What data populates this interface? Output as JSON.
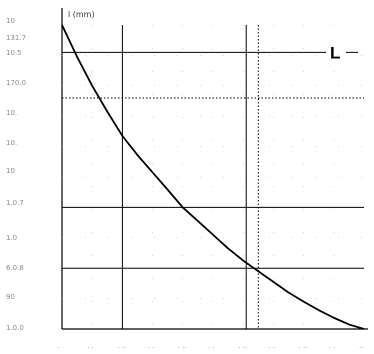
{
  "chart_data": {
    "type": "line",
    "title": "",
    "ylabel": "l (mm)",
    "xlabel": "",
    "xlim": [
      0,
      10
    ],
    "ylim": [
      0,
      10
    ],
    "y_ticks": [
      {
        "value": 0,
        "label": "1.0.0"
      },
      {
        "value": 1,
        "label": "90"
      },
      {
        "value": 2,
        "label": "6.0.8"
      },
      {
        "value": 3,
        "label": "1.0"
      },
      {
        "value": 4,
        "label": "1.0.7"
      },
      {
        "value": 5,
        "label": "10"
      },
      {
        "value": 6,
        "label": "10."
      },
      {
        "value": 7,
        "label": "10."
      },
      {
        "value": 8,
        "label": "170.0"
      },
      {
        "value": 9,
        "label": "10.5"
      },
      {
        "value": 10,
        "label": "131.7"
      },
      {
        "value": 11,
        "label": "10"
      }
    ],
    "x_ticks": [
      {
        "value": 0,
        "label": "."
      },
      {
        "value": 1,
        "label": ". ."
      },
      {
        "value": 2,
        "label": ". .."
      },
      {
        "value": 3,
        "label": ". ."
      },
      {
        "value": 4,
        "label": ". .."
      },
      {
        "value": 5,
        "label": ". ."
      },
      {
        "value": 6,
        "label": ". .."
      },
      {
        "value": 7,
        "label": ". ."
      },
      {
        "value": 8,
        "label": ". .."
      },
      {
        "value": 9,
        "label": ". ."
      },
      {
        "value": 10,
        "label": ".."
      }
    ],
    "major_vlines": [
      2,
      6.1
    ],
    "dotted_vlines": [
      6.5
    ],
    "major_hlines": [
      9.1,
      4.0,
      2.0
    ],
    "dotted_hlines": [
      7.6
    ],
    "reference_line": {
      "label": "L",
      "y": 9.1
    },
    "series": [
      {
        "x": [
          0,
          0.5,
          1,
          1.5,
          2,
          2.5,
          3,
          3.5,
          4,
          4.5,
          5,
          5.5,
          6,
          6.5,
          7,
          7.5,
          8,
          8.5,
          9,
          9.5,
          10
        ],
        "y": [
          10,
          8.95,
          8.0,
          7.15,
          6.35,
          5.72,
          5.15,
          4.58,
          4.0,
          3.55,
          3.1,
          2.65,
          2.25,
          1.9,
          1.55,
          1.2,
          0.9,
          0.62,
          0.37,
          0.15,
          0
        ]
      }
    ]
  }
}
